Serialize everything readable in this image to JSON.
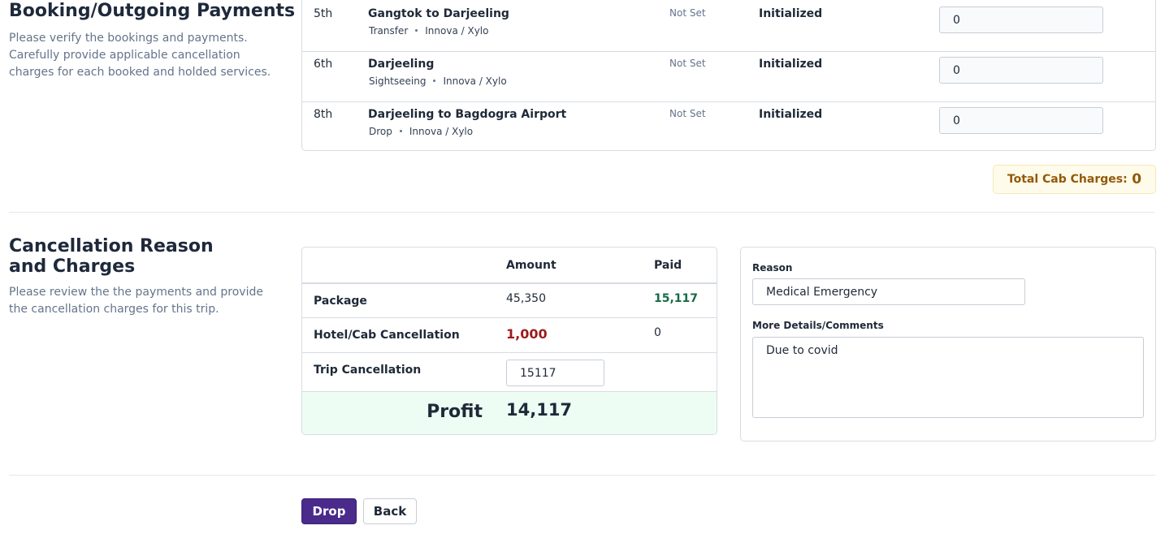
{
  "bookings": {
    "title": "Booking/Outgoing Payments",
    "description": "Please verify the bookings and payments. Carefully provide applicable cancellation charges for each booked and holded services.",
    "rows": [
      {
        "day": "5th",
        "title": "Gangtok to Darjeeling",
        "type": "Transfer",
        "vehicle": "Innova / Xylo",
        "rate": "Not Set",
        "status": "Initialized",
        "charge": "0"
      },
      {
        "day": "6th",
        "title": "Darjeeling",
        "type": "Sightseeing",
        "vehicle": "Innova / Xylo",
        "rate": "Not Set",
        "status": "Initialized",
        "charge": "0"
      },
      {
        "day": "8th",
        "title": "Darjeeling to Bagdogra Airport",
        "type": "Drop",
        "vehicle": "Innova / Xylo",
        "rate": "Not Set",
        "status": "Initialized",
        "charge": "0"
      }
    ],
    "total_label": "Total Cab Charges:",
    "total_value": "0"
  },
  "cancellation": {
    "title": "Cancellation Reason and Charges",
    "description": "Please review the the payments and provide the cancellation charges for this trip.",
    "table": {
      "headers": [
        "Amount",
        "Paid"
      ],
      "rows": [
        {
          "label": "Package",
          "amount": "45,350",
          "paid": "15,117"
        },
        {
          "label": "Hotel/Cab Cancellation",
          "amount": "1,000",
          "paid": "0"
        },
        {
          "label": "Trip Cancellation",
          "amount": "15117"
        }
      ],
      "profit_label": "Profit",
      "profit_value": "14,117"
    },
    "reason_label": "Reason",
    "reason": "Medical Emergency",
    "comments_label": "More Details/Comments",
    "comments": "Due to covid"
  },
  "buttons": [
    "Drop",
    "Back"
  ]
}
